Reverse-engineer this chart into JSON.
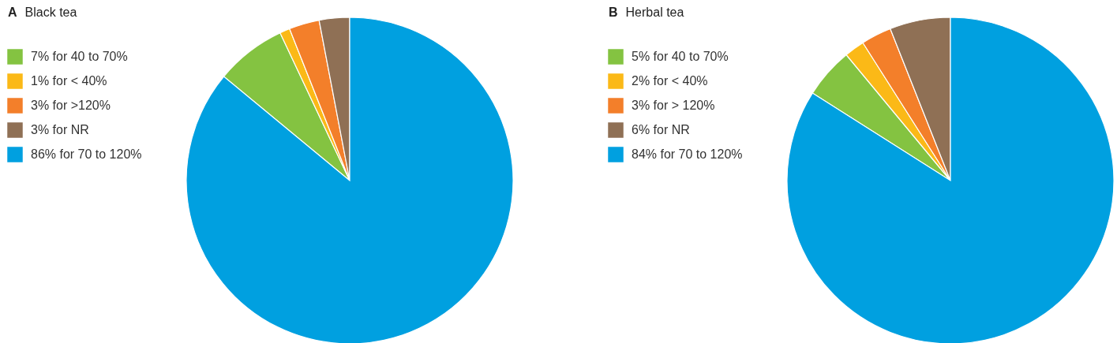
{
  "chart_data": [
    {
      "type": "pie",
      "title": "Black tea",
      "annotations": [
        "A"
      ],
      "legend": "left",
      "categories": [
        "7% for 40 to 70%",
        "1% for < 40%",
        "3% for >120%",
        "3% for NR",
        "86% for 70 to 120%"
      ],
      "values": [
        7,
        1,
        3,
        3,
        86
      ],
      "colors": [
        "#84c341",
        "#fbb917",
        "#f37f2a",
        "#8f7055",
        "#00a0e0"
      ]
    },
    {
      "type": "pie",
      "title": "Herbal tea",
      "annotations": [
        "B"
      ],
      "legend": "left",
      "categories": [
        "5% for 40 to 70%",
        "2% for < 40%",
        "3% for > 120%",
        "6% for NR",
        "84% for 70 to 120%"
      ],
      "values": [
        5,
        2,
        3,
        6,
        84
      ],
      "colors": [
        "#84c341",
        "#fbb917",
        "#f37f2a",
        "#8f7055",
        "#00a0e0"
      ]
    }
  ]
}
